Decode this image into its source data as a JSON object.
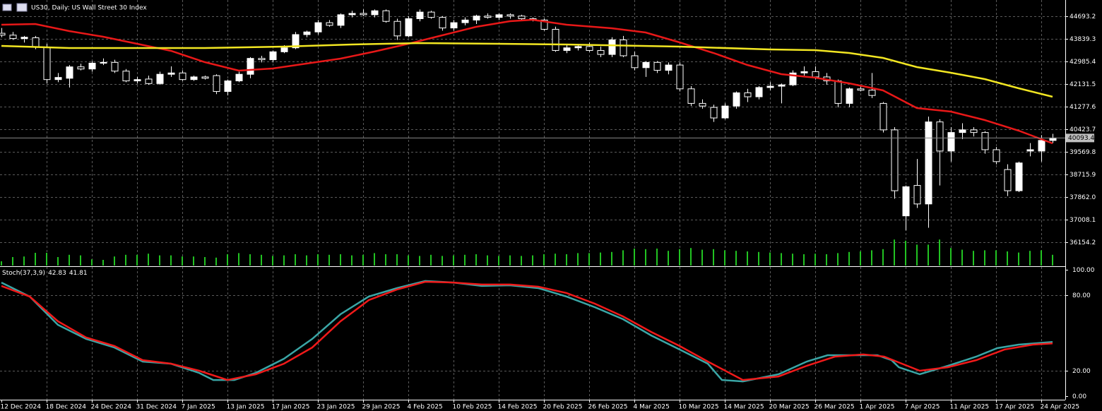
{
  "chart_data": {
    "type": "candlestick",
    "title": "US30, Daily:  US Wall Street 30 Index",
    "ylim": [
      35273.6,
      45306.9
    ],
    "yticks": [
      44693.2,
      43839.3,
      42985.4,
      42131.5,
      41277.6,
      40423.7,
      39569.8,
      38715.9,
      {
        "value": 37862,
        "label": "37862.0"
      },
      37008.1,
      36154.2
    ],
    "grid": true,
    "bull_color": "#ffffff",
    "bear_color": "#000000",
    "xticks": [
      {
        "value": 0,
        "label": "12 Dec 2024"
      },
      {
        "value": 4,
        "label": "18 Dec 2024"
      },
      {
        "value": 8,
        "label": "24 Dec 2024"
      },
      {
        "value": 12,
        "label": "31 Dec 2024"
      },
      {
        "value": 16,
        "label": "7 Jan 2025"
      },
      {
        "value": 20,
        "label": "13 Jan 2025"
      },
      {
        "value": 24,
        "label": "17 Jan 2025"
      },
      {
        "value": 28,
        "label": "23 Jan 2025"
      },
      {
        "value": 32,
        "label": "29 Jan 2025"
      },
      {
        "value": 36,
        "label": "4 Feb 2025"
      },
      {
        "value": 40,
        "label": "10 Feb 2025"
      },
      {
        "value": 44,
        "label": "14 Feb 2025"
      },
      {
        "value": 48,
        "label": "20 Feb 2025"
      },
      {
        "value": 52,
        "label": "26 Feb 2025"
      },
      {
        "value": 56,
        "label": "4 Mar 2025"
      },
      {
        "value": 60,
        "label": "10 Mar 2025"
      },
      {
        "value": 64,
        "label": "14 Mar 2025"
      },
      {
        "value": 68,
        "label": "20 Mar 2025"
      },
      {
        "value": 72,
        "label": "26 Mar 2025"
      },
      {
        "value": 76,
        "label": "1 Apr 2025"
      },
      {
        "value": 80,
        "label": "7 Apr 2025"
      },
      {
        "value": 84,
        "label": "11 Apr 2025"
      },
      {
        "value": 88,
        "label": "17 Apr 2025"
      },
      {
        "value": 92,
        "label": "24 Apr 2025"
      }
    ],
    "candles": [
      [
        44050,
        44250,
        43900,
        43980
      ],
      [
        43980,
        44100,
        43800,
        43850
      ],
      [
        43850,
        43950,
        43700,
        43900
      ],
      [
        43880,
        43950,
        43450,
        43520
      ],
      [
        43520,
        43650,
        42150,
        42300
      ],
      [
        42300,
        42550,
        42200,
        42380
      ],
      [
        42350,
        42850,
        42000,
        42780
      ],
      [
        42780,
        42900,
        42650,
        42700
      ],
      [
        42700,
        43000,
        42600,
        42920
      ],
      [
        42920,
        43100,
        42850,
        42950
      ],
      [
        42950,
        43050,
        42550,
        42620
      ],
      [
        42620,
        42700,
        42200,
        42250
      ],
      [
        42250,
        42400,
        42150,
        42300
      ],
      [
        42320,
        42450,
        42100,
        42150
      ],
      [
        42150,
        42600,
        42100,
        42500
      ],
      [
        42500,
        42800,
        42400,
        42550
      ],
      [
        42550,
        42650,
        42250,
        42300
      ],
      [
        42300,
        42450,
        42250,
        42400
      ],
      [
        42400,
        42450,
        42300,
        42350
      ],
      [
        42450,
        42500,
        41750,
        41850
      ],
      [
        41850,
        42300,
        41700,
        42250
      ],
      [
        42250,
        42600,
        42200,
        42500
      ],
      [
        42500,
        43150,
        42350,
        43100
      ],
      [
        43100,
        43200,
        42950,
        43050
      ],
      [
        43050,
        43400,
        42950,
        43350
      ],
      [
        43350,
        43600,
        43300,
        43500
      ],
      [
        43500,
        44100,
        43450,
        44000
      ],
      [
        44000,
        44150,
        43900,
        44100
      ],
      [
        44100,
        44550,
        44000,
        44450
      ],
      [
        44450,
        44550,
        44300,
        44350
      ],
      [
        44350,
        44800,
        44250,
        44750
      ],
      [
        44750,
        44900,
        44650,
        44800
      ],
      [
        44800,
        44950,
        44700,
        44750
      ],
      [
        44750,
        44950,
        44650,
        44900
      ],
      [
        44900,
        44950,
        44450,
        44500
      ],
      [
        44500,
        44600,
        43800,
        43950
      ],
      [
        43950,
        44700,
        43900,
        44600
      ],
      [
        44600,
        44950,
        44500,
        44850
      ],
      [
        44850,
        44900,
        44600,
        44650
      ],
      [
        44650,
        44700,
        44150,
        44250
      ],
      [
        44250,
        44550,
        44150,
        44450
      ],
      [
        44450,
        44650,
        44350,
        44550
      ],
      [
        44550,
        44750,
        44400,
        44700
      ],
      [
        44700,
        44800,
        44600,
        44650
      ],
      [
        44650,
        44800,
        44550,
        44750
      ],
      [
        44750,
        44800,
        44600,
        44700
      ],
      [
        44700,
        44750,
        44550,
        44600
      ],
      [
        44600,
        44650,
        44500,
        44550
      ],
      [
        44550,
        44600,
        44150,
        44200
      ],
      [
        44200,
        44300,
        43350,
        43400
      ],
      [
        43400,
        43600,
        43300,
        43500
      ],
      [
        43500,
        43650,
        43400,
        43550
      ],
      [
        43550,
        43700,
        43350,
        43400
      ],
      [
        43400,
        43550,
        43150,
        43250
      ],
      [
        43250,
        43900,
        43150,
        43800
      ],
      [
        43800,
        43950,
        43150,
        43200
      ],
      [
        43200,
        43350,
        42650,
        42750
      ],
      [
        42750,
        43000,
        42400,
        42950
      ],
      [
        42950,
        43000,
        42550,
        42650
      ],
      [
        42650,
        42950,
        42500,
        42850
      ],
      [
        42850,
        42950,
        41850,
        41950
      ],
      [
        41950,
        42050,
        41300,
        41400
      ],
      [
        41400,
        41550,
        41200,
        41300
      ],
      [
        41250,
        41350,
        40700,
        40850
      ],
      [
        40850,
        41400,
        40800,
        41300
      ],
      [
        41300,
        41850,
        41200,
        41800
      ],
      [
        41800,
        41950,
        41450,
        41650
      ],
      [
        41650,
        42050,
        41550,
        42000
      ],
      [
        42000,
        42200,
        41900,
        42050
      ],
      [
        42050,
        42150,
        41400,
        42100
      ],
      [
        42100,
        42650,
        42050,
        42550
      ],
      [
        42550,
        42800,
        42450,
        42600
      ],
      [
        42600,
        42800,
        42300,
        42400
      ],
      [
        42400,
        42550,
        42100,
        42250
      ],
      [
        42250,
        42300,
        41250,
        41400
      ],
      [
        41400,
        42000,
        41250,
        41950
      ],
      [
        41950,
        42050,
        41850,
        41900
      ],
      [
        41900,
        42550,
        41600,
        41700
      ],
      [
        41400,
        41450,
        40300,
        40400
      ],
      [
        40400,
        40500,
        37800,
        38100
      ],
      [
        37150,
        38300,
        36600,
        38250
      ],
      [
        38300,
        39300,
        37450,
        37600
      ],
      [
        37600,
        40900,
        36700,
        40700
      ],
      [
        40700,
        40800,
        38300,
        39600
      ],
      [
        39600,
        40500,
        39200,
        40300
      ],
      [
        40300,
        40650,
        40050,
        40400
      ],
      [
        40400,
        40500,
        40150,
        40300
      ],
      [
        40300,
        40350,
        39500,
        39650
      ],
      [
        39650,
        39750,
        39100,
        39200
      ],
      [
        38900,
        39100,
        37900,
        38100
      ],
      [
        38100,
        39200,
        38050,
        39150
      ],
      [
        39600,
        39900,
        39400,
        39650
      ],
      [
        39600,
        40200,
        39200,
        40000
      ],
      [
        40000,
        40250,
        39900,
        40093.4
      ]
    ],
    "volume": [
      15,
      30,
      32,
      45,
      45,
      30,
      38,
      36,
      22,
      20,
      32,
      38,
      38,
      42,
      36,
      36,
      32,
      32,
      30,
      28,
      40,
      44,
      40,
      38,
      34,
      36,
      40,
      36,
      40,
      38,
      40,
      36,
      38,
      44,
      40,
      40,
      36,
      34,
      38,
      34,
      36,
      38,
      40,
      36,
      34,
      36,
      34,
      36,
      40,
      42,
      40,
      44,
      44,
      46,
      48,
      54,
      60,
      58,
      60,
      52,
      58,
      62,
      56,
      58,
      54,
      52,
      50,
      48,
      46,
      44,
      42,
      40,
      42,
      40,
      44,
      48,
      50,
      54,
      58,
      92,
      88,
      74,
      74,
      92,
      62,
      56,
      52,
      54,
      54,
      50,
      46,
      52,
      54,
      38
    ],
    "volume_lim": [
      0,
      100
    ],
    "volume_color": "#22c322",
    "lines": [
      {
        "color": "#e81818",
        "x": [
          0,
          3,
          6,
          9,
          12,
          15,
          18,
          21,
          24,
          27,
          30,
          33,
          36,
          39,
          42,
          45,
          47,
          50,
          54,
          57,
          60,
          63,
          66,
          69,
          72,
          75,
          78,
          81,
          84,
          87,
          90,
          93
        ],
        "values": [
          44373,
          44400,
          44133,
          43919,
          43652,
          43386,
          42959,
          42639,
          42719,
          42905,
          43092,
          43359,
          43652,
          43973,
          44293,
          44506,
          44560,
          44373,
          44240,
          44079,
          43706,
          43306,
          42852,
          42505,
          42372,
          42158,
          41891,
          41224,
          41091,
          40771,
          40370,
          39890
        ]
      },
      {
        "color": "#f2e622",
        "x": [
          0,
          6,
          12,
          18,
          25,
          31,
          37,
          44,
          50,
          60,
          68,
          72,
          75,
          78,
          81,
          84,
          87,
          90,
          93
        ],
        "values": [
          43572,
          43492,
          43492,
          43492,
          43546,
          43626,
          43679,
          43652,
          43626,
          43546,
          43439,
          43412,
          43306,
          43119,
          42772,
          42558,
          42318,
          41971,
          41651
        ]
      }
    ],
    "stoch": {
      "type": "line",
      "name": "Stoch(37,3,9)",
      "ylim": [
        0,
        100
      ],
      "yticks": [
        {
          "value": 100,
          "label": "100.00"
        },
        {
          "value": 80,
          "label": "80.00"
        },
        {
          "value": 20,
          "label": "20.00"
        },
        {
          "value": 0,
          "label": "0.00"
        }
      ],
      "series": [
        {
          "color": "#3aa6a6",
          "x": [
            0,
            2.5,
            5,
            7.5,
            10,
            12.5,
            15,
            17.5,
            18.75,
            20.6,
            22.5,
            25,
            27.5,
            30,
            32.5,
            35,
            37.5,
            40,
            42.5,
            45,
            47.5,
            50,
            52.5,
            55,
            57.5,
            60,
            62.5,
            63.75,
            65.6,
            68.75,
            71.25,
            73.1,
            75,
            77.5,
            78.75,
            79.4,
            81.25,
            83.75,
            86.25,
            88.1,
            90,
            93
          ],
          "values": [
            89.9,
            78.8,
            56.4,
            45.3,
            38.5,
            27.4,
            25.7,
            18.4,
            12.8,
            12.8,
            18.4,
            29.6,
            45.3,
            64.8,
            78.8,
            85.5,
            91.1,
            89.9,
            87.2,
            87.7,
            85.5,
            78.8,
            70.4,
            60.9,
            48.0,
            36.9,
            25.7,
            12.8,
            11.7,
            17.3,
            27.4,
            32.4,
            32.4,
            32.4,
            28.5,
            22.9,
            17.3,
            24.0,
            31.3,
            38.0,
            40.8,
            42.83
          ]
        },
        {
          "color": "#f01a1a",
          "x": [
            0,
            2.5,
            5,
            7.5,
            10,
            12.5,
            15,
            17.5,
            20,
            22.5,
            25,
            27.5,
            30,
            32.5,
            35,
            37.5,
            40,
            42.5,
            45,
            47.5,
            50,
            52.5,
            55,
            57.5,
            60,
            62.5,
            65.6,
            68.75,
            71.25,
            73.75,
            76.25,
            78.1,
            81.25,
            83.75,
            86.25,
            88.75,
            91.25,
            93
          ],
          "values": [
            87.2,
            78.8,
            59.2,
            46.4,
            39.7,
            28.5,
            25.7,
            20.1,
            12.8,
            17.3,
            25.7,
            38.5,
            59.2,
            76.0,
            84.4,
            90.5,
            89.9,
            88.3,
            88.3,
            86.6,
            81.6,
            73.2,
            63.1,
            50.8,
            39.7,
            27.4,
            12.8,
            15.6,
            24.0,
            31.3,
            33.0,
            31.3,
            20.1,
            22.9,
            28.5,
            36.9,
            40.8,
            41.81
          ]
        }
      ]
    }
  }
}
